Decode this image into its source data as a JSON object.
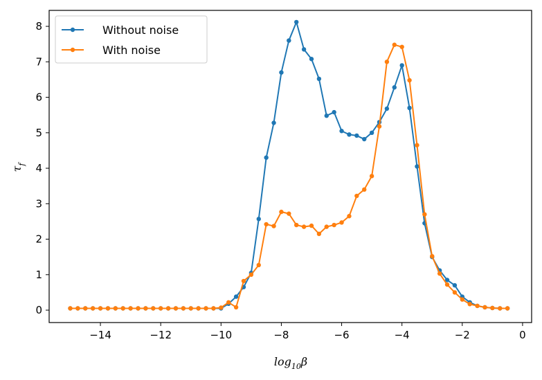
{
  "chart_data": {
    "type": "line",
    "xlabel_base": "log",
    "xlabel_sub": "10",
    "xlabel_sym": "β",
    "ylabel_base": "τ",
    "ylabel_sub": "f",
    "xlim": [
      -15.7,
      0.3
    ],
    "ylim": [
      -0.35,
      8.45
    ],
    "x_ticks": [
      -14,
      -12,
      -10,
      -8,
      -6,
      -4,
      -2,
      0
    ],
    "x_tick_labels": [
      "−14",
      "−12",
      "−10",
      "−8",
      "−6",
      "−4",
      "−2",
      "0"
    ],
    "y_ticks": [
      0,
      1,
      2,
      3,
      4,
      5,
      6,
      7,
      8
    ],
    "y_tick_labels": [
      "0",
      "1",
      "2",
      "3",
      "4",
      "5",
      "6",
      "7",
      "8"
    ],
    "legend_position": "top-left",
    "x": [
      -15.0,
      -14.75,
      -14.5,
      -14.25,
      -14.0,
      -13.75,
      -13.5,
      -13.25,
      -13.0,
      -12.75,
      -12.5,
      -12.25,
      -12.0,
      -11.75,
      -11.5,
      -11.25,
      -11.0,
      -10.75,
      -10.5,
      -10.25,
      -10.0,
      -9.75,
      -9.5,
      -9.25,
      -9.0,
      -8.75,
      -8.5,
      -8.25,
      -8.0,
      -7.75,
      -7.5,
      -7.25,
      -7.0,
      -6.75,
      -6.5,
      -6.25,
      -6.0,
      -5.75,
      -5.5,
      -5.25,
      -5.0,
      -4.75,
      -4.5,
      -4.25,
      -4.0,
      -3.75,
      -3.5,
      -3.25,
      -3.0,
      -2.75,
      -2.5,
      -2.25,
      -2.0,
      -1.75,
      -1.5,
      -1.25,
      -1.0,
      -0.75,
      -0.5
    ],
    "series": [
      {
        "name": "Without noise",
        "color": "#1f77b4",
        "values": [
          0.05,
          0.05,
          0.05,
          0.05,
          0.05,
          0.05,
          0.05,
          0.05,
          0.05,
          0.05,
          0.05,
          0.05,
          0.05,
          0.05,
          0.05,
          0.05,
          0.05,
          0.05,
          0.05,
          0.05,
          0.05,
          0.18,
          0.38,
          0.65,
          1.05,
          2.57,
          4.3,
          5.28,
          6.7,
          7.6,
          8.12,
          7.35,
          7.08,
          6.52,
          5.48,
          5.58,
          5.05,
          4.95,
          4.92,
          4.82,
          5.0,
          5.3,
          5.68,
          6.28,
          6.9,
          5.7,
          4.05,
          2.45,
          1.5,
          1.12,
          0.85,
          0.7,
          0.38,
          0.22,
          0.12,
          0.08,
          0.06,
          0.05,
          0.05
        ]
      },
      {
        "name": "With noise",
        "color": "#ff7f0e",
        "values": [
          0.05,
          0.05,
          0.05,
          0.05,
          0.05,
          0.05,
          0.05,
          0.05,
          0.05,
          0.05,
          0.05,
          0.05,
          0.05,
          0.05,
          0.05,
          0.05,
          0.05,
          0.05,
          0.05,
          0.05,
          0.07,
          0.22,
          0.08,
          0.82,
          1.0,
          1.27,
          2.42,
          2.37,
          2.77,
          2.72,
          2.4,
          2.35,
          2.38,
          2.15,
          2.35,
          2.4,
          2.47,
          2.65,
          3.22,
          3.4,
          3.78,
          5.18,
          7.0,
          7.48,
          7.42,
          6.48,
          4.65,
          2.7,
          1.52,
          1.03,
          0.72,
          0.5,
          0.3,
          0.17,
          0.12,
          0.08,
          0.06,
          0.05,
          0.05
        ]
      }
    ]
  }
}
